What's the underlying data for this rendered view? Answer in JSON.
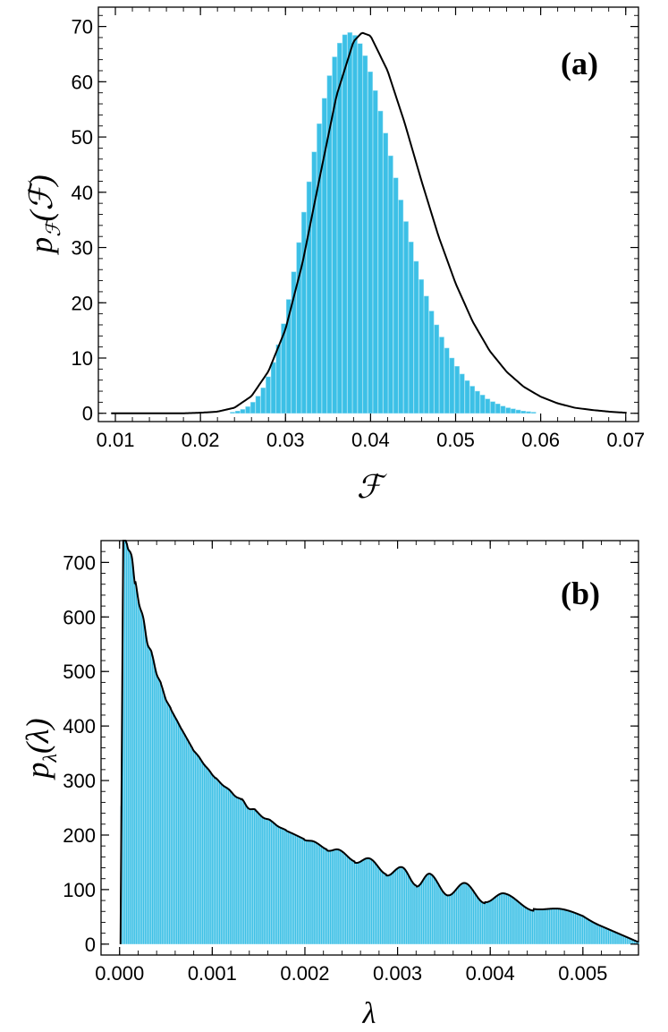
{
  "chart_data": [
    {
      "type": "bar",
      "panel_label": "(a)",
      "xlabel": "ℱ",
      "ylabel_main": "p",
      "ylabel_sub": "ℱ",
      "ylabel_arg": "(ℱ)",
      "xlim": [
        0.008,
        0.0715
      ],
      "ylim": [
        -1.5,
        73.5
      ],
      "xticks": [
        0.01,
        0.02,
        0.03,
        0.04,
        0.05,
        0.06,
        0.07
      ],
      "xtick_labels": [
        "0.01",
        "0.02",
        "0.03",
        "0.04",
        "0.05",
        "0.06",
        "0.07"
      ],
      "yticks": [
        0,
        10,
        20,
        30,
        40,
        50,
        60,
        70
      ],
      "ytick_labels": [
        "0",
        "10",
        "20",
        "30",
        "40",
        "50",
        "60",
        "70"
      ],
      "grid": false,
      "legend": "none",
      "bar_color": "#3cc0e6",
      "histogram": {
        "bin_start": 0.0235,
        "bin_width": 0.0006,
        "values": [
          0.2,
          0.4,
          0.7,
          1.2,
          2.0,
          3.1,
          4.6,
          6.6,
          9.2,
          12.4,
          16.2,
          20.6,
          25.6,
          30.9,
          36.4,
          41.9,
          47.3,
          52.4,
          57.0,
          61.1,
          64.5,
          67.0,
          68.5,
          68.9,
          68.4,
          66.9,
          64.7,
          61.8,
          58.4,
          54.7,
          50.7,
          46.6,
          42.6,
          38.6,
          34.7,
          31.0,
          27.5,
          24.2,
          21.2,
          18.5,
          16.0,
          13.8,
          11.8,
          10.0,
          8.5,
          7.1,
          5.9,
          4.9,
          4.0,
          3.3,
          2.6,
          2.1,
          1.7,
          1.3,
          1.0,
          0.8,
          0.6,
          0.4,
          0.3,
          0.2
        ]
      },
      "fit_curve": {
        "color": "#000000",
        "x": [
          0.01,
          0.015,
          0.018,
          0.02,
          0.022,
          0.024,
          0.026,
          0.028,
          0.03,
          0.032,
          0.034,
          0.036,
          0.038,
          0.039,
          0.04,
          0.042,
          0.044,
          0.046,
          0.048,
          0.05,
          0.052,
          0.054,
          0.056,
          0.058,
          0.06,
          0.062,
          0.064,
          0.066,
          0.068,
          0.07
        ],
        "y": [
          0.0,
          0.0,
          0.0,
          0.1,
          0.3,
          1.0,
          3.1,
          7.6,
          15.2,
          27.2,
          42.5,
          57.5,
          67.3,
          68.9,
          68.3,
          62.0,
          52.6,
          42.0,
          32.0,
          23.5,
          16.6,
          11.3,
          7.5,
          4.8,
          3.0,
          1.8,
          1.0,
          0.6,
          0.3,
          0.1
        ]
      }
    },
    {
      "type": "bar",
      "panel_label": "(b)",
      "xlabel": "λ",
      "ylabel_main": "p",
      "ylabel_sub": "λ",
      "ylabel_arg": "(λ)",
      "xlim": [
        -0.0002,
        0.0056
      ],
      "ylim": [
        -20,
        740
      ],
      "xticks": [
        0.0,
        0.001,
        0.002,
        0.003,
        0.004,
        0.005
      ],
      "xtick_labels": [
        "0.000",
        "0.001",
        "0.002",
        "0.003",
        "0.004",
        "0.005"
      ],
      "yticks": [
        0,
        100,
        200,
        300,
        400,
        500,
        600,
        700
      ],
      "ytick_labels": [
        "0",
        "100",
        "200",
        "300",
        "400",
        "500",
        "600",
        "700"
      ],
      "grid": false,
      "legend": "none",
      "bar_color": "#3cc0e6",
      "envelope": {
        "x": [
          4e-05,
          8e-05,
          0.00012,
          0.0002,
          0.0003,
          0.0004,
          0.0005,
          0.0006,
          0.0008,
          0.001,
          0.0012,
          0.0015,
          0.0018,
          0.002,
          0.0023,
          0.0026,
          0.003,
          0.0034,
          0.0038,
          0.0042,
          0.0046,
          0.005,
          0.0053,
          0.0056
        ],
        "y": [
          760,
          740,
          700,
          640,
          560,
          500,
          450,
          415,
          355,
          310,
          280,
          240,
          208,
          192,
          170,
          150,
          125,
          103,
          87,
          75,
          63,
          50,
          28,
          6
        ]
      },
      "peaks": [
        {
          "x": 0.00013,
          "y": 712
        },
        {
          "x": 0.00021,
          "y": 624
        },
        {
          "x": 0.0003,
          "y": 551
        },
        {
          "x": 0.0004,
          "y": 495
        },
        {
          "x": 0.0005,
          "y": 448
        },
        {
          "x": 0.00061,
          "y": 413
        },
        {
          "x": 0.00073,
          "y": 376
        },
        {
          "x": 0.00085,
          "y": 345
        },
        {
          "x": 0.00097,
          "y": 318
        },
        {
          "x": 0.00111,
          "y": 292
        },
        {
          "x": 0.00125,
          "y": 271
        },
        {
          "x": 0.00139,
          "y": 249
        },
        {
          "x": 0.00155,
          "y": 232
        },
        {
          "x": 0.00171,
          "y": 216
        },
        {
          "x": 0.00189,
          "y": 201
        },
        {
          "x": 0.0021,
          "y": 188
        },
        {
          "x": 0.00237,
          "y": 173
        },
        {
          "x": 0.0027,
          "y": 157
        },
        {
          "x": 0.00305,
          "y": 141
        },
        {
          "x": 0.00335,
          "y": 129
        },
        {
          "x": 0.00373,
          "y": 112
        },
        {
          "x": 0.00415,
          "y": 93
        },
        {
          "x": 0.00478,
          "y": 64
        }
      ],
      "fit_color": "#000000"
    }
  ]
}
